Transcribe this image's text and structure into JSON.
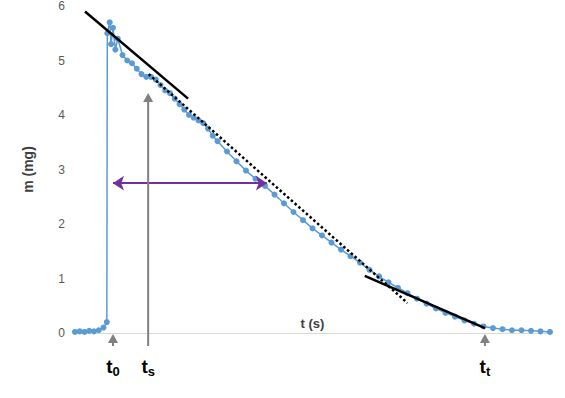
{
  "chart_data": {
    "type": "line",
    "x_label": "t (s)",
    "y_label": "m (mg)",
    "xlim": [
      0,
      100
    ],
    "ylim": [
      0,
      6
    ],
    "yticks": [
      0,
      1,
      2,
      3,
      4,
      5,
      6
    ],
    "grid": false,
    "tick_labels": "y",
    "series": [
      {
        "color": "#5b9bd5",
        "marker": "circle",
        "line_style": "solid",
        "x": [
          0,
          1,
          2,
          3,
          4,
          5,
          6,
          6.7,
          6.8,
          7.3,
          7.6,
          8.0,
          8.5,
          9,
          10,
          11,
          12,
          13,
          14,
          15,
          16,
          17,
          18,
          19,
          20,
          21,
          22,
          23,
          24,
          25,
          26,
          27,
          28,
          29,
          30,
          32,
          34,
          36,
          38,
          40,
          42,
          44,
          46,
          48,
          50,
          52,
          54,
          56,
          58,
          60,
          62,
          64,
          66,
          68,
          70,
          72,
          74,
          76,
          78,
          80,
          82,
          84,
          86,
          88,
          90,
          92,
          94,
          96,
          98,
          100
        ],
        "values": [
          0.02,
          0.03,
          0.02,
          0.04,
          0.03,
          0.05,
          0.1,
          0.2,
          5.5,
          5.7,
          5.3,
          5.6,
          5.2,
          5.4,
          5.1,
          5.0,
          4.95,
          4.85,
          4.75,
          4.7,
          4.7,
          4.65,
          4.55,
          4.45,
          4.4,
          4.3,
          4.2,
          4.1,
          4.0,
          3.95,
          3.9,
          3.85,
          3.75,
          3.62,
          3.52,
          3.33,
          3.15,
          2.98,
          2.83,
          2.7,
          2.54,
          2.38,
          2.22,
          2.07,
          1.92,
          1.79,
          1.66,
          1.53,
          1.41,
          1.29,
          1.16,
          1.04,
          0.93,
          0.83,
          0.73,
          0.63,
          0.54,
          0.45,
          0.37,
          0.3,
          0.23,
          0.17,
          0.12,
          0.09,
          0.07,
          0.05,
          0.05,
          0.04,
          0.03,
          0.02
        ]
      }
    ],
    "lines": [
      {
        "x": [
          2.1,
          23.8
        ],
        "values": [
          5.9,
          4.3
        ],
        "color": "#000000",
        "line_style": "solid"
      },
      {
        "x": [
          15.5,
          70
        ],
        "values": [
          4.75,
          0.55
        ],
        "color": "#000000",
        "line_style": "dotted"
      },
      {
        "x": [
          61,
          86.3
        ],
        "values": [
          1.05,
          0.09
        ],
        "color": "#000000",
        "line_style": "solid"
      }
    ],
    "arrows": [
      {
        "x": [
          8,
          40.4
        ],
        "values": [
          2.75,
          2.75
        ],
        "color": "#7030a0"
      }
    ],
    "markers": [
      {
        "label": "t0",
        "x": 8,
        "y": 0,
        "color": "#808080"
      },
      {
        "label": "ts",
        "x": 15.4,
        "y": 4.42,
        "color": "#808080"
      },
      {
        "label": "tt",
        "x": 86.3,
        "y": 0,
        "color": "#808080"
      }
    ]
  }
}
